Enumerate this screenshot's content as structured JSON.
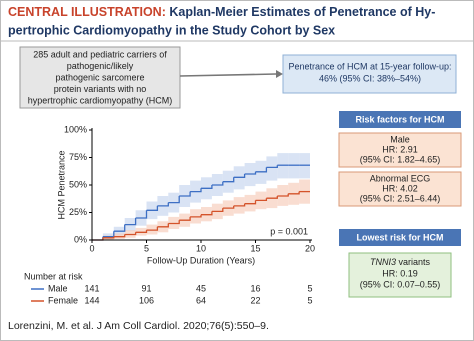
{
  "header": {
    "label": "CENTRAL ILLUSTRATION:",
    "title_lines": [
      "Kaplan-Meier Estimates of Penetrance of Hy-",
      "pertrophic Cardiomyopathy in the Study Cohort by Sex"
    ]
  },
  "cohort_box": {
    "lines": [
      "285 adult and pediatric carriers of",
      "pathogenic/likely",
      "pathogenic sarcomere",
      "protein variants with no",
      "hypertrophic cardiomyopathy (HCM)"
    ]
  },
  "penetrance_box": {
    "lines": [
      "Penetrance of HCM at 15-year follow-up:",
      "46% (95% CI: 38%–54%)"
    ]
  },
  "risk_factors": {
    "title": "Risk factors for HCM",
    "items": [
      {
        "name": "Male",
        "hr": "HR: 2.91",
        "ci": "(95% CI: 1.82–4.65)"
      },
      {
        "name": "Abnormal ECG",
        "hr": "HR: 4.02",
        "ci": "(95% CI: 2.51–6.44)"
      }
    ]
  },
  "lowest_risk": {
    "title": "Lowest risk for HCM",
    "items": [
      {
        "gene": "TNNI3",
        "name": "variants",
        "hr": "HR: 0.19",
        "ci": "(95% CI: 0.07–0.55)"
      }
    ]
  },
  "citation": "Lorenzini, M. et al. J Am Coll Cardiol. 2020;76(5):550–9.",
  "chart_data": {
    "type": "line",
    "y_label": "HCM Penetrance",
    "x_label": "Follow-Up Duration (Years)",
    "annotation": "p = 0.001",
    "x": [
      0,
      1,
      2,
      3,
      4,
      5,
      6,
      7,
      8,
      9,
      10,
      11,
      12,
      13,
      14,
      15,
      16,
      17,
      18,
      19,
      20
    ],
    "series": [
      {
        "name": "Male",
        "color": "#3d6fc4",
        "band_color": "#c9d7f0",
        "values": [
          0,
          3,
          8,
          14,
          20,
          27,
          31,
          34,
          40,
          44,
          47,
          50,
          53,
          57,
          60,
          62,
          66,
          68,
          68,
          68,
          68
        ],
        "lower": [
          0,
          1,
          4,
          8,
          13,
          19,
          22,
          25,
          30,
          34,
          37,
          40,
          43,
          46,
          49,
          51,
          54,
          56,
          56,
          56,
          56
        ],
        "upper": [
          0,
          6,
          12,
          20,
          27,
          35,
          40,
          43,
          50,
          54,
          57,
          60,
          63,
          67,
          70,
          72,
          76,
          79,
          79,
          79,
          79
        ],
        "at_risk": [
          141,
          91,
          45,
          16,
          5
        ]
      },
      {
        "name": "Female",
        "color": "#d4532a",
        "band_color": "#f7cfbd",
        "values": [
          0,
          2,
          3,
          5,
          7,
          9,
          12,
          15,
          18,
          21,
          23,
          26,
          29,
          31,
          33,
          36,
          38,
          40,
          42,
          44,
          44
        ],
        "lower": [
          0,
          0,
          1,
          2,
          4,
          5,
          7,
          10,
          12,
          15,
          17,
          19,
          22,
          24,
          26,
          28,
          29,
          31,
          32,
          33,
          33
        ],
        "upper": [
          0,
          4,
          6,
          9,
          11,
          14,
          17,
          21,
          24,
          28,
          30,
          33,
          36,
          39,
          41,
          44,
          47,
          50,
          52,
          55,
          55
        ],
        "at_risk": [
          144,
          106,
          64,
          22,
          5
        ]
      }
    ],
    "xlim": [
      0,
      20
    ],
    "ylim": [
      0,
      100
    ],
    "xticks": [
      0,
      5,
      10,
      15,
      20
    ],
    "yticks": [
      {
        "value": 0,
        "label": "0%"
      },
      {
        "value": 25,
        "label": "25%"
      },
      {
        "value": 50,
        "label": "50%"
      },
      {
        "value": 75,
        "label": "75%"
      },
      {
        "value": 100,
        "label": "100%"
      }
    ],
    "risk_table": {
      "title": "Number at risk"
    }
  }
}
